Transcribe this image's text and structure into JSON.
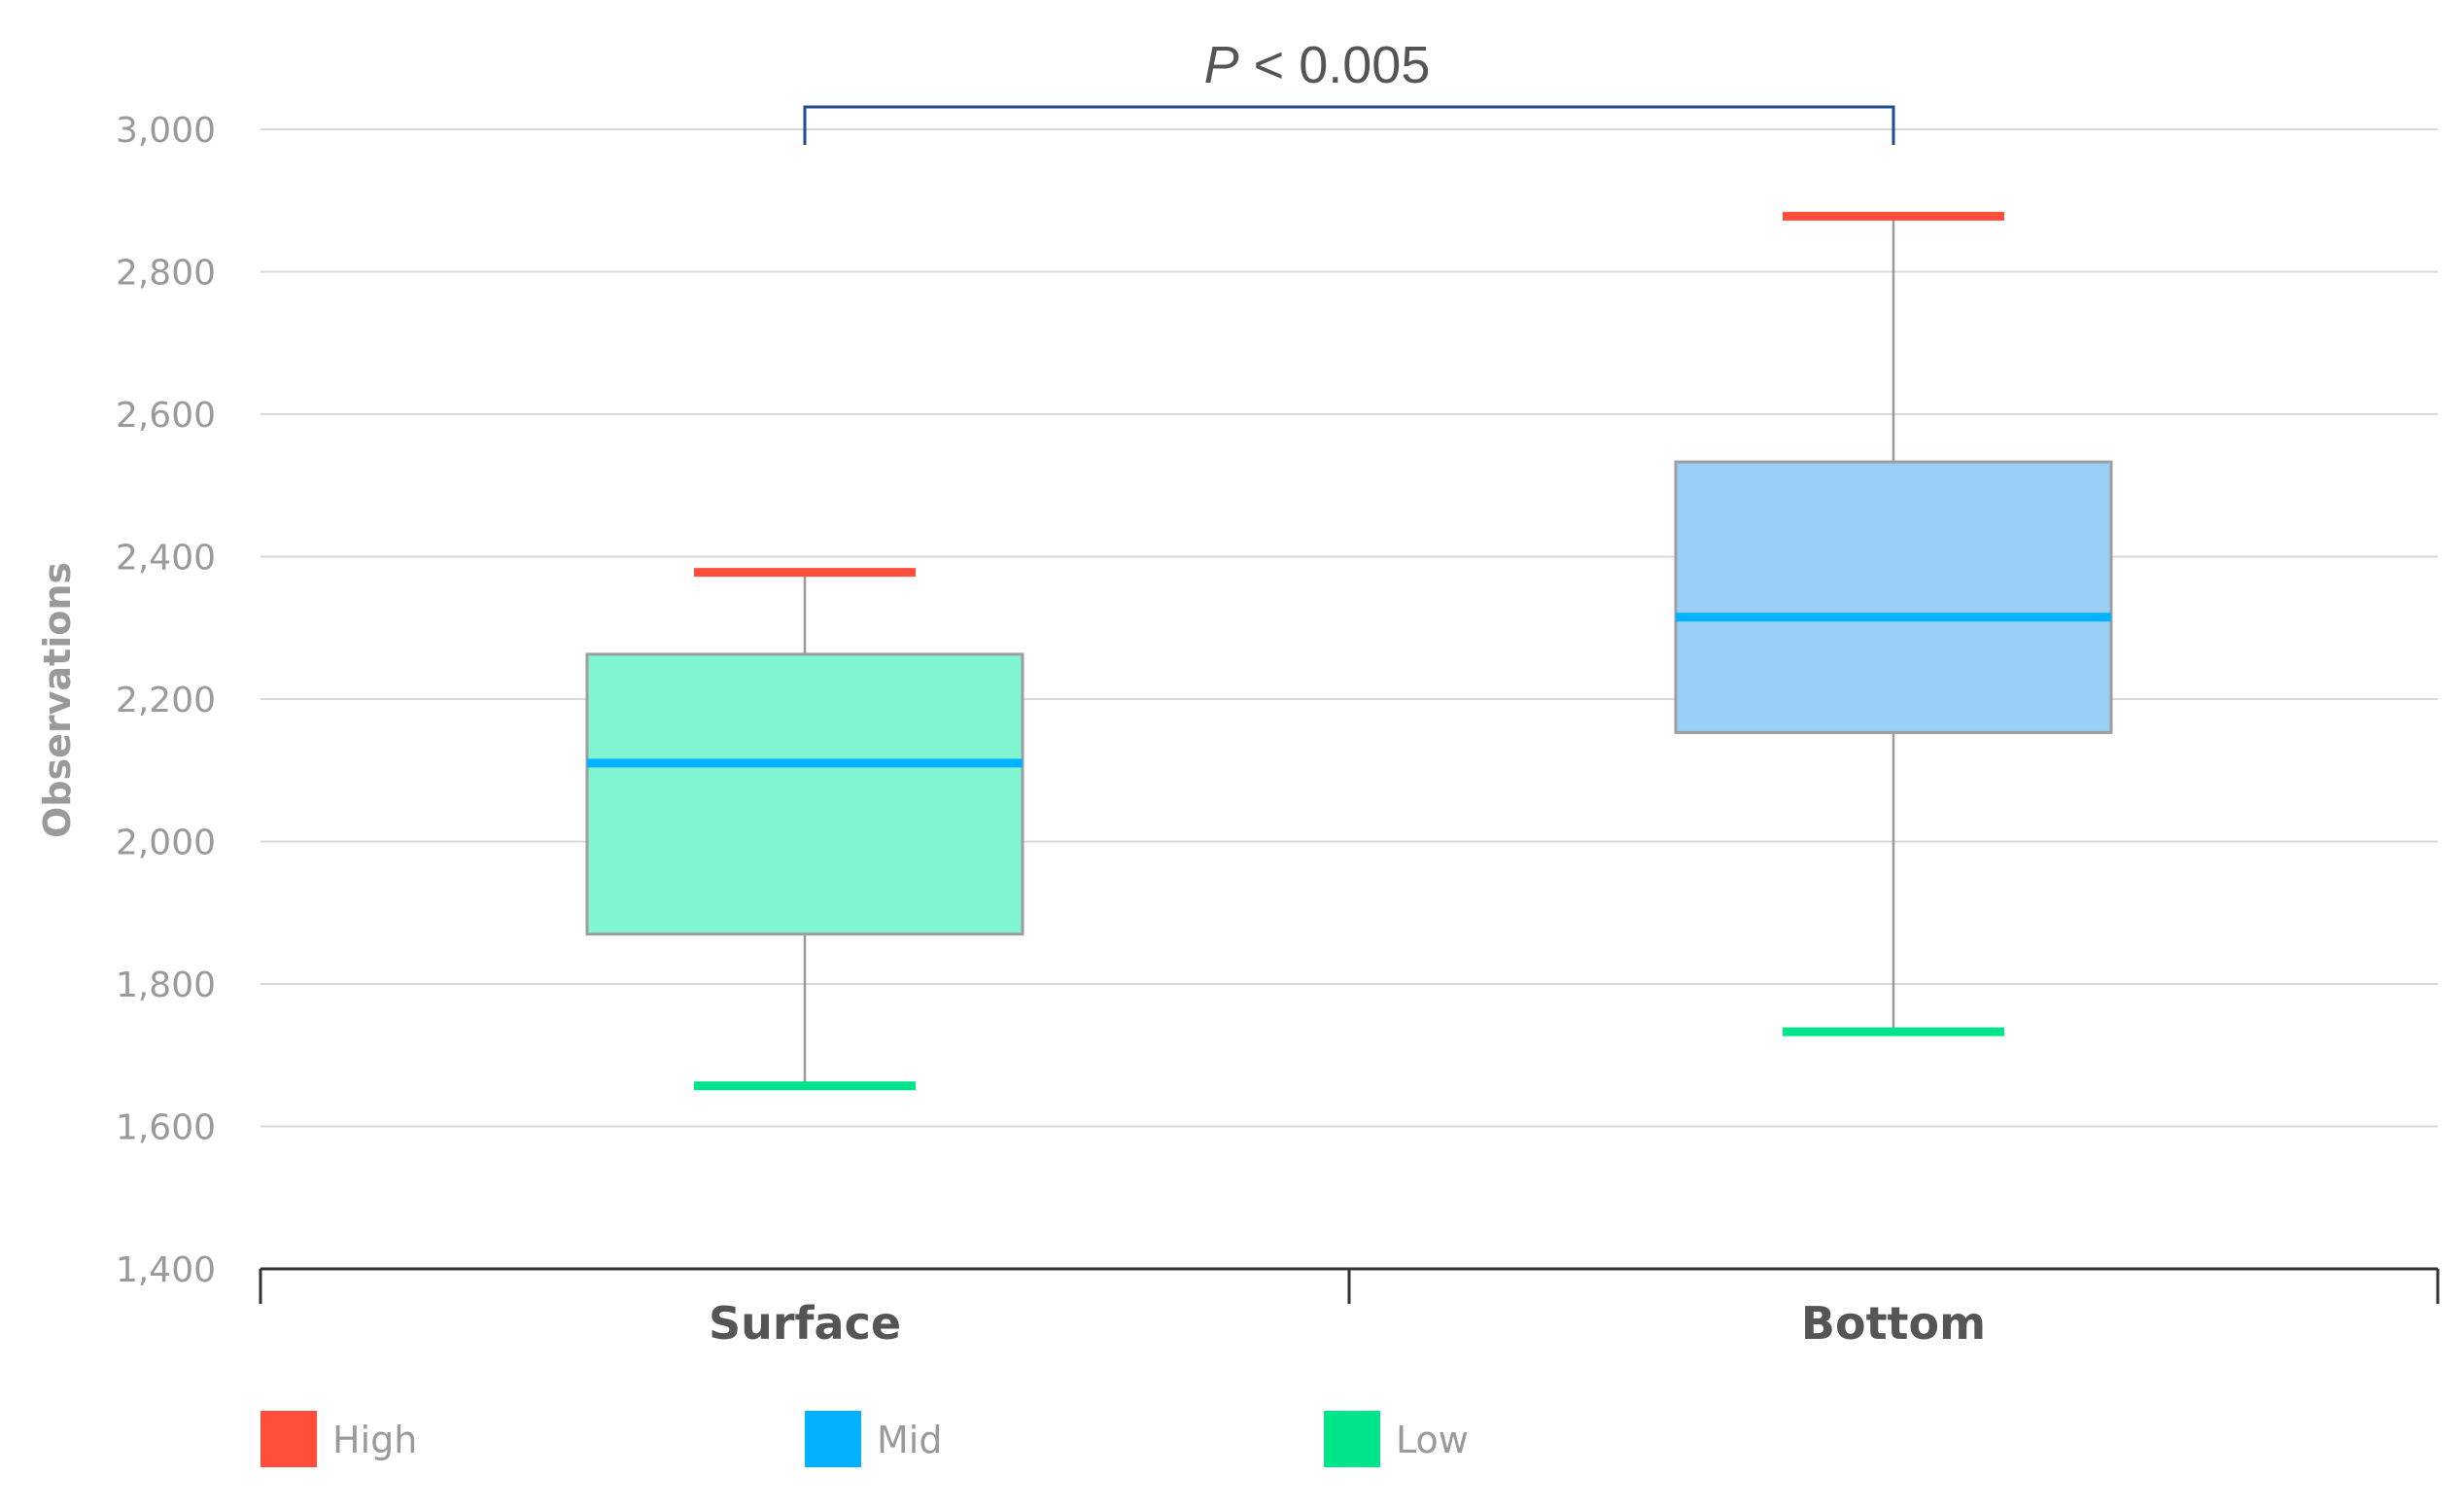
{
  "chart_data": {
    "type": "boxplot",
    "ylabel": "Observations",
    "ylim": [
      1400,
      3000
    ],
    "yticks": [
      "1,400",
      "1,600",
      "1,800",
      "2,000",
      "2,200",
      "2,400",
      "2,600",
      "2,800",
      "3,000"
    ],
    "ytick_values": [
      1400,
      1600,
      1800,
      2000,
      2200,
      2400,
      2600,
      2800,
      3000
    ],
    "grid": true,
    "categories": [
      "Surface",
      "Bottom"
    ],
    "boxes": [
      {
        "category": "Surface",
        "low": 1657,
        "q1": 1870,
        "median": 2110,
        "q3": 2263,
        "high": 2378,
        "fill": "#80f7d0"
      },
      {
        "category": "Bottom",
        "low": 1733,
        "q1": 2153,
        "median": 2315,
        "q3": 2533,
        "high": 2878,
        "fill": "#99cff5"
      }
    ],
    "annotation": {
      "italic": "P",
      "text": " < 0.005"
    },
    "legend": [
      {
        "label": "High",
        "color": "#ff4f3b"
      },
      {
        "label": "Mid",
        "color": "#00b2ff"
      },
      {
        "label": "Low",
        "color": "#00e58c"
      }
    ],
    "legend_position": "bottom-left"
  }
}
